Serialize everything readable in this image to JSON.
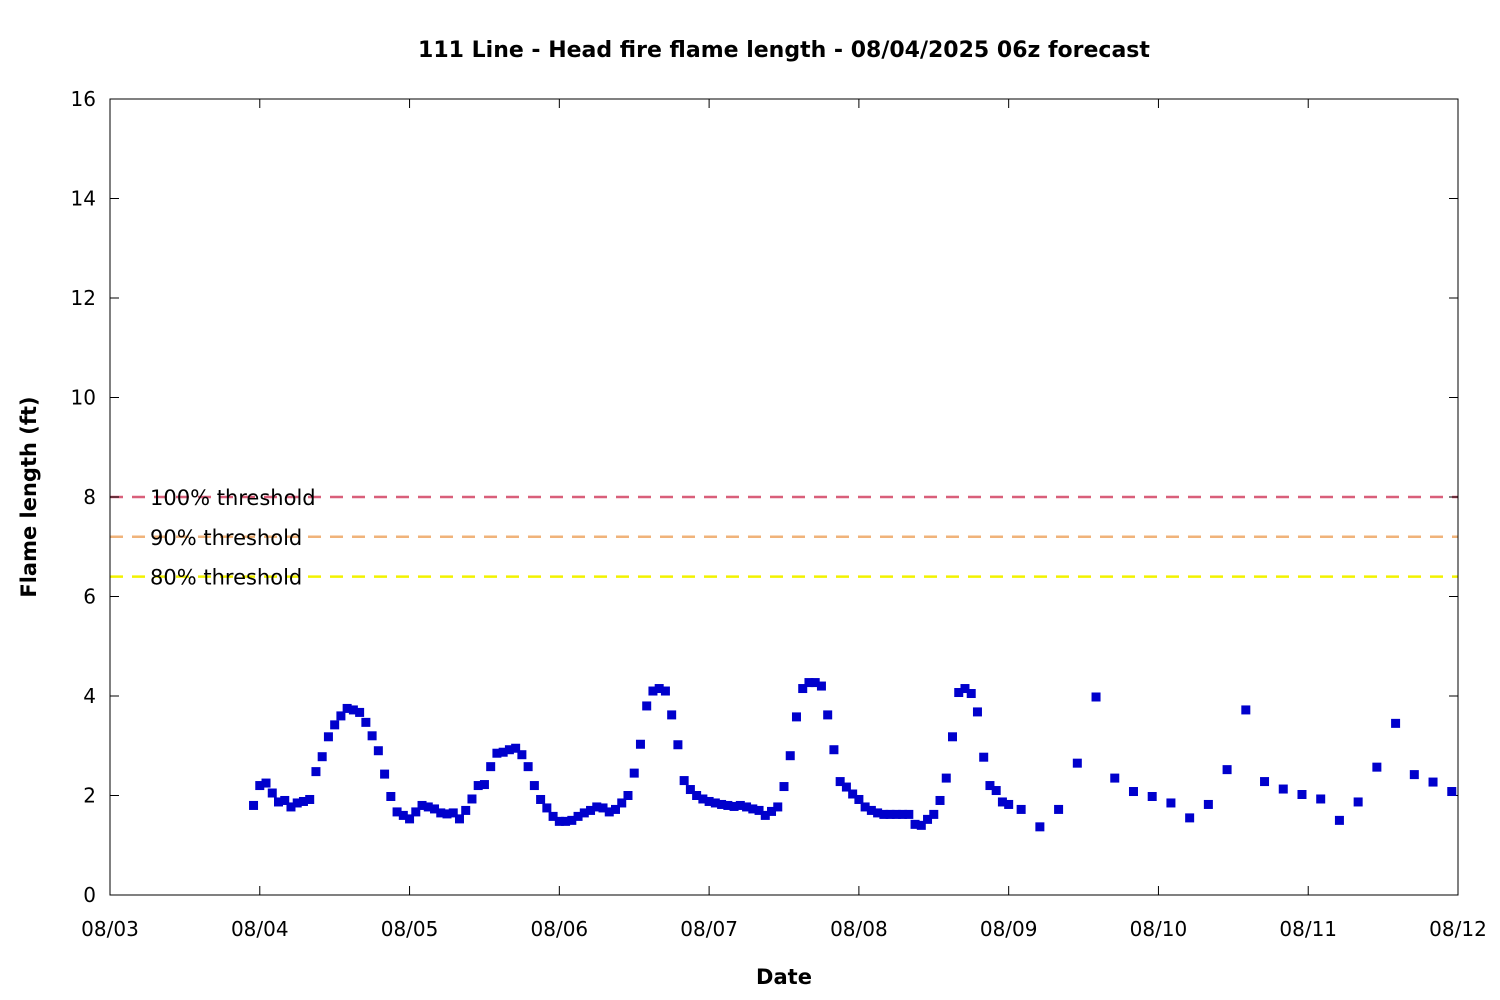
{
  "chart_data": {
    "type": "scatter",
    "title": "111 Line - Head fire flame length - 08/04/2025 06z forecast",
    "xlabel": "Date",
    "ylabel": "Flame length (ft)",
    "xlim": [
      "08/03",
      "08/12"
    ],
    "ylim": [
      0,
      16
    ],
    "x_ticks": [
      "08/03",
      "08/04",
      "08/05",
      "08/06",
      "08/07",
      "08/08",
      "08/09",
      "08/10",
      "08/11",
      "08/12"
    ],
    "y_ticks": [
      0,
      2,
      4,
      6,
      8,
      10,
      12,
      14,
      16
    ],
    "grid": false,
    "marker_color": "#0000cc",
    "thresholds": [
      {
        "label": "100% threshold",
        "value": 8.0,
        "color": "#d95f7a"
      },
      {
        "label": "90% threshold",
        "value": 7.2,
        "color": "#f0b37a"
      },
      {
        "label": "80% threshold",
        "value": 6.4,
        "color": "#f2f200"
      }
    ],
    "series": [
      {
        "x_note_units": "days from 08/03 00z",
        "points": [
          [
            "08/03 23z",
            1.8
          ],
          [
            "08/04 00z",
            2.2
          ],
          [
            "08/04 01z",
            2.25
          ],
          [
            "08/04 02z",
            2.05
          ],
          [
            "08/04 03z",
            1.87
          ],
          [
            "08/04 04z",
            1.9
          ],
          [
            "08/04 05z",
            1.77
          ],
          [
            "08/04 06z",
            1.85
          ],
          [
            "08/04 07z",
            1.88
          ],
          [
            "08/04 08z",
            1.92
          ],
          [
            "08/04 09z",
            2.48
          ],
          [
            "08/04 10z",
            2.78
          ],
          [
            "08/04 11z",
            3.18
          ],
          [
            "08/04 12z",
            3.42
          ],
          [
            "08/04 13z",
            3.6
          ],
          [
            "08/04 14z",
            3.75
          ],
          [
            "08/04 15z",
            3.72
          ],
          [
            "08/04 16z",
            3.67
          ],
          [
            "08/04 17z",
            3.47
          ],
          [
            "08/04 18z",
            3.2
          ],
          [
            "08/04 19z",
            2.9
          ],
          [
            "08/04 20z",
            2.43
          ],
          [
            "08/04 21z",
            1.98
          ],
          [
            "08/04 22z",
            1.67
          ],
          [
            "08/04 23z",
            1.6
          ],
          [
            "08/05 00z",
            1.53
          ],
          [
            "08/05 01z",
            1.67
          ],
          [
            "08/05 02z",
            1.8
          ],
          [
            "08/05 03z",
            1.77
          ],
          [
            "08/05 04z",
            1.73
          ],
          [
            "08/05 05z",
            1.65
          ],
          [
            "08/05 06z",
            1.63
          ],
          [
            "08/05 07z",
            1.65
          ],
          [
            "08/05 08z",
            1.53
          ],
          [
            "08/05 09z",
            1.7
          ],
          [
            "08/05 10z",
            1.93
          ],
          [
            "08/05 11z",
            2.2
          ],
          [
            "08/05 12z",
            2.22
          ],
          [
            "08/05 13z",
            2.58
          ],
          [
            "08/05 14z",
            2.85
          ],
          [
            "08/05 15z",
            2.87
          ],
          [
            "08/05 16z",
            2.92
          ],
          [
            "08/05 17z",
            2.95
          ],
          [
            "08/05 18z",
            2.82
          ],
          [
            "08/05 19z",
            2.58
          ],
          [
            "08/05 20z",
            2.2
          ],
          [
            "08/05 21z",
            1.92
          ],
          [
            "08/05 22z",
            1.75
          ],
          [
            "08/05 23z",
            1.58
          ],
          [
            "08/06 00z",
            1.48
          ],
          [
            "08/06 01z",
            1.48
          ],
          [
            "08/06 02z",
            1.5
          ],
          [
            "08/06 03z",
            1.58
          ],
          [
            "08/06 04z",
            1.65
          ],
          [
            "08/06 05z",
            1.7
          ],
          [
            "08/06 06z",
            1.77
          ],
          [
            "08/06 07z",
            1.75
          ],
          [
            "08/06 08z",
            1.67
          ],
          [
            "08/06 09z",
            1.72
          ],
          [
            "08/06 10z",
            1.85
          ],
          [
            "08/06 11z",
            2.0
          ],
          [
            "08/06 12z",
            2.45
          ],
          [
            "08/06 13z",
            3.03
          ],
          [
            "08/06 14z",
            3.8
          ],
          [
            "08/06 15z",
            4.1
          ],
          [
            "08/06 16z",
            4.15
          ],
          [
            "08/06 17z",
            4.1
          ],
          [
            "08/06 18z",
            3.62
          ],
          [
            "08/06 19z",
            3.02
          ],
          [
            "08/06 20z",
            2.3
          ],
          [
            "08/06 21z",
            2.12
          ],
          [
            "08/06 22z",
            2.0
          ],
          [
            "08/06 23z",
            1.93
          ],
          [
            "08/07 00z",
            1.88
          ],
          [
            "08/07 01z",
            1.85
          ],
          [
            "08/07 02z",
            1.82
          ],
          [
            "08/07 03z",
            1.8
          ],
          [
            "08/07 04z",
            1.78
          ],
          [
            "08/07 05z",
            1.8
          ],
          [
            "08/07 06z",
            1.77
          ],
          [
            "08/07 07z",
            1.73
          ],
          [
            "08/07 08z",
            1.7
          ],
          [
            "08/07 09z",
            1.6
          ],
          [
            "08/07 10z",
            1.68
          ],
          [
            "08/07 11z",
            1.77
          ],
          [
            "08/07 12z",
            2.18
          ],
          [
            "08/07 13z",
            2.8
          ],
          [
            "08/07 14z",
            3.58
          ],
          [
            "08/07 15z",
            4.15
          ],
          [
            "08/07 16z",
            4.27
          ],
          [
            "08/07 17z",
            4.27
          ],
          [
            "08/07 18z",
            4.2
          ],
          [
            "08/07 19z",
            3.62
          ],
          [
            "08/07 20z",
            2.92
          ],
          [
            "08/07 21z",
            2.28
          ],
          [
            "08/07 22z",
            2.17
          ],
          [
            "08/07 23z",
            2.03
          ],
          [
            "08/08 00z",
            1.92
          ],
          [
            "08/08 01z",
            1.77
          ],
          [
            "08/08 02z",
            1.7
          ],
          [
            "08/08 03z",
            1.65
          ],
          [
            "08/08 04z",
            1.62
          ],
          [
            "08/08 05z",
            1.62
          ],
          [
            "08/08 06z",
            1.62
          ],
          [
            "08/08 07z",
            1.62
          ],
          [
            "08/08 08z",
            1.62
          ],
          [
            "08/08 09z",
            1.42
          ],
          [
            "08/08 10z",
            1.4
          ],
          [
            "08/08 11z",
            1.52
          ],
          [
            "08/08 12z",
            1.62
          ],
          [
            "08/08 13z",
            1.9
          ],
          [
            "08/08 14z",
            2.35
          ],
          [
            "08/08 15z",
            3.18
          ],
          [
            "08/08 16z",
            4.07
          ],
          [
            "08/08 17z",
            4.15
          ],
          [
            "08/08 18z",
            4.05
          ],
          [
            "08/08 19z",
            3.68
          ],
          [
            "08/08 20z",
            2.77
          ],
          [
            "08/08 21z",
            2.2
          ],
          [
            "08/08 22z",
            2.1
          ],
          [
            "08/08 23z",
            1.87
          ],
          [
            "08/09 00z",
            1.82
          ],
          [
            "08/09 02z",
            1.72
          ],
          [
            "08/09 05z",
            1.37
          ],
          [
            "08/09 08z",
            1.72
          ],
          [
            "08/09 11z",
            2.65
          ],
          [
            "08/09 14z",
            3.98
          ],
          [
            "08/09 17z",
            2.35
          ],
          [
            "08/09 20z",
            2.08
          ],
          [
            "08/09 23z",
            1.98
          ],
          [
            "08/10 02z",
            1.85
          ],
          [
            "08/10 05z",
            1.55
          ],
          [
            "08/10 08z",
            1.82
          ],
          [
            "08/10 11z",
            2.52
          ],
          [
            "08/10 14z",
            3.72
          ],
          [
            "08/10 17z",
            2.28
          ],
          [
            "08/10 20z",
            2.13
          ],
          [
            "08/10 23z",
            2.02
          ],
          [
            "08/11 02z",
            1.93
          ],
          [
            "08/11 05z",
            1.5
          ],
          [
            "08/11 08z",
            1.87
          ],
          [
            "08/11 11z",
            2.57
          ],
          [
            "08/11 14z",
            3.45
          ],
          [
            "08/11 17z",
            2.42
          ],
          [
            "08/11 20z",
            2.27
          ],
          [
            "08/11 23z",
            2.08
          ]
        ]
      }
    ]
  }
}
